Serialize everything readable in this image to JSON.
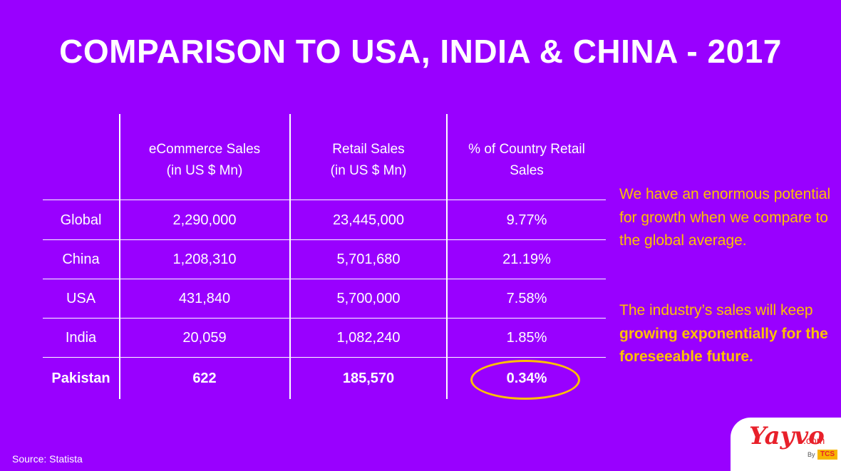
{
  "title": "COMPARISON TO USA, INDIA & CHINA - 2017",
  "table": {
    "headers": [
      "",
      "eCommerce  Sales\n(in US $ Mn)",
      "Retail Sales\n(in US $ Mn)",
      "% of Country Retail\nSales"
    ],
    "rows": [
      {
        "label": "Global",
        "ecommerce": "2,290,000",
        "retail": "23,445,000",
        "percent": "9.77%"
      },
      {
        "label": "China",
        "ecommerce": "1,208,310",
        "retail": "5,701,680",
        "percent": "21.19%"
      },
      {
        "label": "USA",
        "ecommerce": "431,840",
        "retail": "5,700,000",
        "percent": "7.58%"
      },
      {
        "label": "India",
        "ecommerce": "20,059",
        "retail": "1,082,240",
        "percent": "1.85%"
      },
      {
        "label": "Pakistan",
        "ecommerce": "622",
        "retail": "185,570",
        "percent": "0.34%"
      }
    ]
  },
  "side_text": {
    "para1": "We have an enormous potential for growth when we compare to the global average.",
    "para2_plain": "The industry’s sales will keep",
    "para2_bold": "growing exponentially for the foreseeable future."
  },
  "source": "Source: Statista",
  "logo": {
    "main": "Yayvo",
    "suffix": ".com",
    "by": "By",
    "brand": "TCS"
  },
  "colors": {
    "background": "#9900ff",
    "accent": "#ffc000",
    "text": "#ffffff"
  }
}
